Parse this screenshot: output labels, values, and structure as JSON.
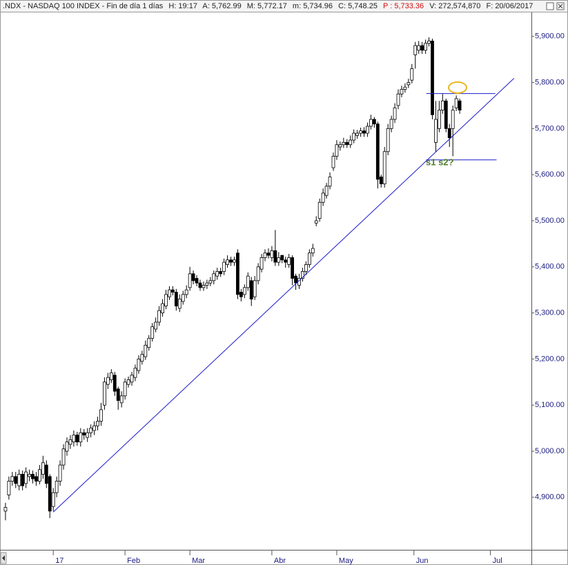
{
  "chart_data": {
    "type": "candlestick",
    "header": [
      ".NDX - NASDAQ 100 INDEX - Fin de día 1 días",
      "H: 19:17",
      "A: 5,762.99",
      "M: 5,772.17",
      "m: 5,734.96",
      "C: 5,748.25",
      "P : 5,733.36",
      "V: 272,574,870",
      "F: 20/06/2017"
    ],
    "xlim": [
      -1.6,
      154
    ],
    "xticks": [
      {
        "value": 14,
        "label": "17"
      },
      {
        "value": 35,
        "label": "Feb"
      },
      {
        "value": 54,
        "label": "Mar"
      },
      {
        "value": 78,
        "label": "Abr"
      },
      {
        "value": 97,
        "label": "May"
      },
      {
        "value": 119.6,
        "label": "Jun"
      },
      {
        "value": 142,
        "label": "Jul"
      }
    ],
    "ylim": [
      4786,
      5952
    ],
    "yticks": [
      {
        "value": 4900,
        "label": "4,900.00"
      },
      {
        "value": 5000,
        "label": "5,000.00"
      },
      {
        "value": 5100,
        "label": "5,100.00"
      },
      {
        "value": 5200,
        "label": "5,200.00"
      },
      {
        "value": 5300,
        "label": "5,300.00"
      },
      {
        "value": 5400,
        "label": "5,400.00"
      },
      {
        "value": 5500,
        "label": "5,500.00"
      },
      {
        "value": 5600,
        "label": "5,600.00"
      },
      {
        "value": 5700,
        "label": "5,700.00"
      },
      {
        "value": 5800,
        "label": "5,800.00"
      },
      {
        "value": 5900,
        "label": "5,900.00"
      }
    ],
    "up_color": "#ffffff",
    "down_color": "#000000",
    "open": [
      4870,
      4905,
      4935,
      4945,
      4925,
      4950,
      4930,
      4945,
      4950,
      4945,
      4935,
      4950,
      4970,
      4945,
      4880,
      4910,
      4935,
      4970,
      5000,
      5015,
      5020,
      5035,
      5020,
      5040,
      5030,
      5040,
      5045,
      5055,
      5065,
      5100,
      5145,
      5155,
      5165,
      5135,
      5105,
      5120,
      5145,
      5150,
      5160,
      5175,
      5195,
      5205,
      5225,
      5245,
      5265,
      5280,
      5300,
      5315,
      5335,
      5350,
      5345,
      5310,
      5325,
      5340,
      5355,
      5385,
      5375,
      5365,
      5355,
      5360,
      5365,
      5370,
      5380,
      5390,
      5390,
      5405,
      5415,
      5410,
      5430,
      5345,
      5340,
      5355,
      5370,
      5335,
      5370,
      5395,
      5420,
      5430,
      5420,
      5435,
      5410,
      5425,
      5415,
      5405,
      5420,
      5380,
      5360,
      5375,
      5390,
      5405,
      5430,
      5495,
      5505,
      5540,
      5555,
      5575,
      5615,
      5640,
      5660,
      5665,
      5670,
      5665,
      5675,
      5685,
      5690,
      5695,
      5690,
      5705,
      5720,
      5710,
      5595,
      5580,
      5650,
      5700,
      5720,
      5750,
      5775,
      5785,
      5795,
      5805,
      5860,
      5870,
      5880,
      5870,
      5885,
      5890,
      5670,
      5700,
      5740,
      5760,
      5700,
      5700,
      5745,
      5760
    ],
    "high": [
      4888,
      4945,
      4955,
      4955,
      4960,
      4958,
      4965,
      4960,
      4958,
      4955,
      4970,
      4990,
      4980,
      4950,
      4920,
      4945,
      4980,
      5015,
      5030,
      5035,
      5045,
      5042,
      5050,
      5048,
      5050,
      5058,
      5065,
      5075,
      5105,
      5160,
      5170,
      5178,
      5172,
      5140,
      5130,
      5158,
      5162,
      5172,
      5188,
      5208,
      5218,
      5240,
      5252,
      5278,
      5290,
      5315,
      5330,
      5350,
      5358,
      5358,
      5352,
      5340,
      5348,
      5360,
      5400,
      5392,
      5382,
      5372,
      5368,
      5372,
      5378,
      5392,
      5398,
      5398,
      5418,
      5425,
      5422,
      5422,
      5438,
      5352,
      5362,
      5388,
      5378,
      5380,
      5408,
      5428,
      5438,
      5440,
      5445,
      5480,
      5432,
      5422,
      5422,
      5428,
      5425,
      5385,
      5385,
      5398,
      5412,
      5438,
      5450,
      5510,
      5548,
      5570,
      5582,
      5605,
      5648,
      5675,
      5672,
      5680,
      5677,
      5685,
      5698,
      5697,
      5702,
      5703,
      5713,
      5730,
      5725,
      5715,
      5600,
      5660,
      5710,
      5728,
      5755,
      5785,
      5793,
      5798,
      5808,
      5840,
      5888,
      5890,
      5888,
      5893,
      5898,
      5895,
      5760,
      5760,
      5775,
      5765,
      5710,
      5750,
      5772,
      5765
    ],
    "low": [
      4850,
      4895,
      4925,
      4920,
      4915,
      4915,
      4920,
      4935,
      4930,
      4925,
      4928,
      4940,
      4920,
      4855,
      4870,
      4900,
      4925,
      4960,
      4990,
      5005,
      5010,
      5012,
      5010,
      5025,
      5020,
      5030,
      5035,
      5045,
      5055,
      5090,
      5135,
      5148,
      5120,
      5090,
      5095,
      5112,
      5138,
      5142,
      5152,
      5168,
      5188,
      5198,
      5218,
      5238,
      5258,
      5272,
      5292,
      5308,
      5328,
      5338,
      5305,
      5302,
      5318,
      5332,
      5348,
      5362,
      5358,
      5348,
      5348,
      5352,
      5358,
      5362,
      5372,
      5378,
      5382,
      5398,
      5402,
      5402,
      5330,
      5325,
      5332,
      5348,
      5315,
      5328,
      5362,
      5388,
      5412,
      5418,
      5412,
      5402,
      5402,
      5408,
      5398,
      5398,
      5360,
      5350,
      5352,
      5368,
      5382,
      5398,
      5422,
      5488,
      5498,
      5532,
      5548,
      5568,
      5608,
      5632,
      5652,
      5658,
      5658,
      5658,
      5668,
      5678,
      5682,
      5682,
      5682,
      5698,
      5702,
      5570,
      5572,
      5572,
      5642,
      5692,
      5712,
      5742,
      5768,
      5778,
      5788,
      5798,
      5830,
      5862,
      5862,
      5862,
      5878,
      5720,
      5650,
      5692,
      5732,
      5692,
      5660,
      5640,
      5738,
      5732
    ],
    "close": [
      4878,
      4935,
      4945,
      4930,
      4950,
      4925,
      4955,
      4950,
      4940,
      4935,
      4960,
      4975,
      4930,
      4870,
      4910,
      4935,
      4970,
      5005,
      5020,
      5025,
      5035,
      5020,
      5040,
      5035,
      5040,
      5050,
      5055,
      5065,
      5090,
      5150,
      5160,
      5170,
      5130,
      5110,
      5120,
      5150,
      5155,
      5165,
      5180,
      5200,
      5210,
      5230,
      5245,
      5270,
      5280,
      5305,
      5320,
      5340,
      5350,
      5345,
      5315,
      5330,
      5340,
      5350,
      5385,
      5370,
      5365,
      5355,
      5360,
      5365,
      5370,
      5385,
      5390,
      5385,
      5410,
      5415,
      5410,
      5415,
      5340,
      5335,
      5355,
      5380,
      5330,
      5370,
      5400,
      5420,
      5430,
      5425,
      5435,
      5410,
      5420,
      5415,
      5410,
      5420,
      5375,
      5365,
      5375,
      5390,
      5405,
      5430,
      5440,
      5500,
      5540,
      5560,
      5575,
      5595,
      5640,
      5665,
      5665,
      5670,
      5665,
      5675,
      5690,
      5690,
      5695,
      5690,
      5705,
      5720,
      5710,
      5590,
      5580,
      5650,
      5700,
      5720,
      5745,
      5775,
      5785,
      5790,
      5800,
      5830,
      5880,
      5880,
      5870,
      5885,
      5890,
      5730,
      5720,
      5740,
      5760,
      5700,
      5680,
      5740,
      5765,
      5740
    ],
    "trend_lines": [
      {
        "color": "#1a1acc",
        "x": [
          14,
          148.9
        ],
        "y": [
          4868,
          5809
        ]
      },
      {
        "color": "#1a1acc",
        "x": [
          123.2,
          143.4
        ],
        "y": [
          5776,
          5776
        ]
      },
      {
        "color": "#1a1acc",
        "x": [
          123.2,
          143.8
        ],
        "y": [
          5632,
          5632
        ]
      }
    ],
    "annotation": "s1 s2?"
  }
}
